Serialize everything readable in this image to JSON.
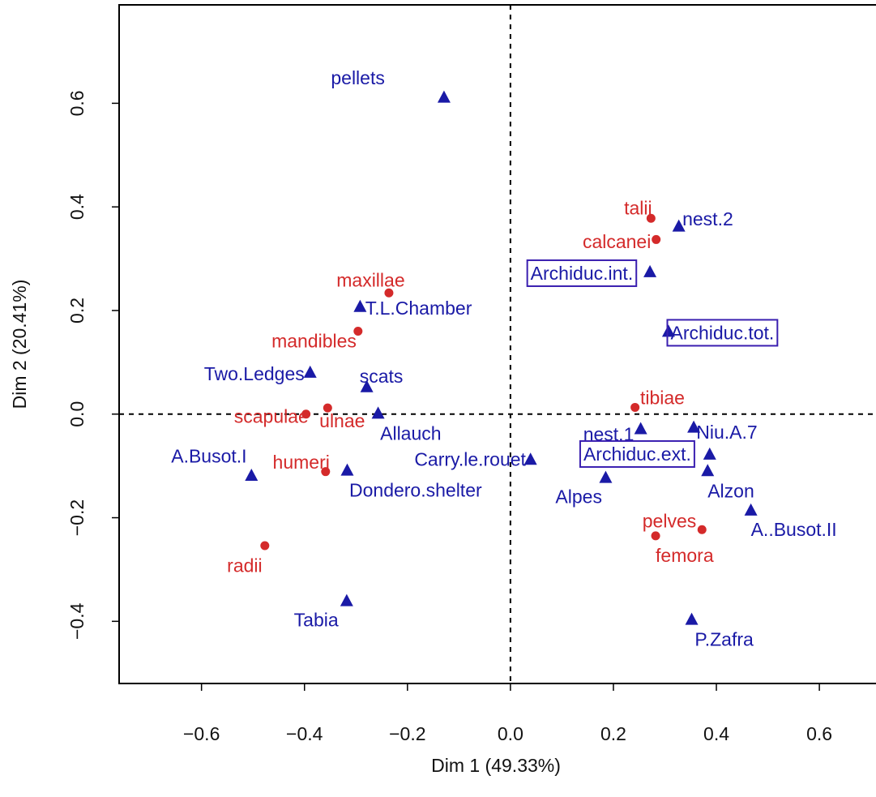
{
  "chart_data": {
    "type": "scatter",
    "title": "",
    "xlabel": "Dim 1 (49.33%)",
    "ylabel": "Dim 2 (20.41%)",
    "xlim": [
      -0.76,
      0.71
    ],
    "ylim": [
      -0.52,
      0.79
    ],
    "x_ticks": [
      -0.6,
      -0.4,
      -0.2,
      0.0,
      0.2,
      0.4,
      0.6
    ],
    "x_tick_labels": [
      "−0.6",
      "−0.4",
      "−0.2",
      "0.0",
      "0.2",
      "0.4",
      "0.6"
    ],
    "y_ticks": [
      -0.4,
      -0.2,
      0.0,
      0.2,
      0.4,
      0.6
    ],
    "y_tick_labels": [
      "−0.4",
      "−0.2",
      "0.0",
      "0.2",
      "0.4",
      "0.6"
    ],
    "reference_lines": {
      "x": 0.0,
      "y": 0.0,
      "style": "dashed"
    },
    "grid": false,
    "colors": {
      "sites": "#1a1aa6",
      "elements": "#d42a2a",
      "box": "#3a1fb0",
      "axis": "#000000"
    },
    "series": [
      {
        "marker": "triangle",
        "color": "#1a1aa6",
        "points": [
          {
            "label": "pellets",
            "x": -0.129,
            "y": 0.613,
            "anchor": "end",
            "dx": -0.115,
            "dy": 0.036
          },
          {
            "label": "nest.2",
            "x": 0.327,
            "y": 0.364,
            "anchor": "start",
            "dx": 0.007,
            "dy": 0.013
          },
          {
            "label": "Archiduc.int.",
            "x": 0.271,
            "y": 0.276,
            "anchor": "start",
            "dx": -0.232,
            "dy": -0.004,
            "boxed": true
          },
          {
            "label": "T.L.Chamber",
            "x": -0.292,
            "y": 0.209,
            "anchor": "start",
            "dx": 0.01,
            "dy": -0.004
          },
          {
            "label": "Archiduc.tot.",
            "x": 0.307,
            "y": 0.161,
            "anchor": "start",
            "dx": 0.004,
            "dy": -0.004,
            "boxed": true
          },
          {
            "label": "Two.Ledges",
            "x": -0.389,
            "y": 0.082,
            "anchor": "end",
            "dx": -0.011,
            "dy": -0.004
          },
          {
            "label": "scats",
            "x": -0.279,
            "y": 0.054,
            "anchor": "start",
            "dx": -0.014,
            "dy": 0.019
          },
          {
            "label": "Allauch",
            "x": -0.257,
            "y": 0.003,
            "anchor": "start",
            "dx": 0.004,
            "dy": -0.04
          },
          {
            "label": "nest.1",
            "x": 0.253,
            "y": -0.027,
            "anchor": "end",
            "dx": -0.013,
            "dy": -0.012
          },
          {
            "label": "Niu.A.7",
            "x": 0.356,
            "y": -0.024,
            "anchor": "start",
            "dx": 0.005,
            "dy": -0.011
          },
          {
            "label": "Carry.le.rouet",
            "x": 0.039,
            "y": -0.086,
            "anchor": "end",
            "dx": -0.009,
            "dy": -0.001
          },
          {
            "label": "Archiduc.ext.",
            "x": 0.387,
            "y": -0.076,
            "anchor": "end",
            "dx": -0.036,
            "dy": -0.001,
            "boxed": true
          },
          {
            "label": "A.Busot.I",
            "x": -0.503,
            "y": -0.117,
            "anchor": "end",
            "dx": -0.009,
            "dy": 0.036
          },
          {
            "label": "Dondero.shelter",
            "x": -0.317,
            "y": -0.107,
            "anchor": "start",
            "dx": 0.004,
            "dy": -0.04
          },
          {
            "label": "Alpes",
            "x": 0.185,
            "y": -0.121,
            "anchor": "end",
            "dx": -0.007,
            "dy": -0.038
          },
          {
            "label": "Alzon",
            "x": 0.383,
            "y": -0.108,
            "anchor": "start",
            "dx": 0.0,
            "dy": -0.04
          },
          {
            "label": "A..Busot.II",
            "x": 0.467,
            "y": -0.184,
            "anchor": "start",
            "dx": 0.0,
            "dy": -0.039
          },
          {
            "label": "Tabia",
            "x": -0.318,
            "y": -0.359,
            "anchor": "end",
            "dx": -0.016,
            "dy": -0.038
          },
          {
            "label": "P.Zafra",
            "x": 0.352,
            "y": -0.395,
            "anchor": "start",
            "dx": 0.006,
            "dy": -0.04
          }
        ]
      },
      {
        "marker": "circle",
        "color": "#d42a2a",
        "points": [
          {
            "label": "talii",
            "x": 0.273,
            "y": 0.378,
            "anchor": "end",
            "dx": 0.002,
            "dy": 0.02
          },
          {
            "label": "calcanei",
            "x": 0.283,
            "y": 0.337,
            "anchor": "end",
            "dx": -0.01,
            "dy": -0.004
          },
          {
            "label": "maxillae",
            "x": -0.236,
            "y": 0.234,
            "anchor": "end",
            "dx": 0.031,
            "dy": 0.025
          },
          {
            "label": "mandibles",
            "x": -0.296,
            "y": 0.16,
            "anchor": "end",
            "dx": -0.003,
            "dy": -0.019
          },
          {
            "label": "tibiae",
            "x": 0.242,
            "y": 0.013,
            "anchor": "start",
            "dx": 0.01,
            "dy": 0.019
          },
          {
            "label": "scapulae",
            "x": -0.397,
            "y": 0.0,
            "anchor": "end",
            "dx": 0.005,
            "dy": -0.004
          },
          {
            "label": "ulnae",
            "x": -0.355,
            "y": 0.012,
            "anchor": "start",
            "dx": -0.016,
            "dy": -0.025
          },
          {
            "label": "humeri",
            "x": -0.359,
            "y": -0.111,
            "anchor": "end",
            "dx": 0.008,
            "dy": 0.018
          },
          {
            "label": "pelves",
            "x": 0.372,
            "y": -0.223,
            "anchor": "end",
            "dx": -0.011,
            "dy": 0.017
          },
          {
            "label": "femora",
            "x": 0.282,
            "y": -0.235,
            "anchor": "start",
            "dx": 0.0,
            "dy": -0.038
          },
          {
            "label": "radii",
            "x": -0.477,
            "y": -0.254,
            "anchor": "end",
            "dx": -0.005,
            "dy": -0.038
          }
        ]
      }
    ]
  }
}
